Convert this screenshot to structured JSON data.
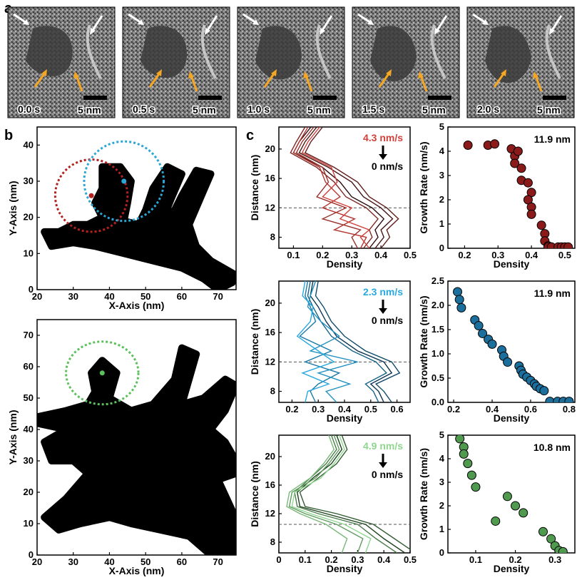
{
  "panel_labels": {
    "a": "a",
    "b": "b",
    "c": "c"
  },
  "panel_a": {
    "frames": [
      {
        "time": "0.0 s"
      },
      {
        "time": "0.5 s"
      },
      {
        "time": "1.0 s"
      },
      {
        "time": "1.5 s"
      },
      {
        "time": "2.0 s"
      }
    ],
    "scale_bar": "5 nm",
    "arrow_colors": {
      "white": "#ffffff",
      "orange": "#f5a623"
    }
  },
  "panel_b": {
    "plots": [
      {
        "xlabel": "X-Axis (nm)",
        "ylabel": "Y-Axis (nm)",
        "xlim": [
          20,
          75
        ],
        "ylim": [
          0,
          45
        ],
        "xticks": [
          "20",
          "30",
          "40",
          "50",
          "60",
          "70"
        ],
        "yticks": [
          "0",
          "10",
          "20",
          "30",
          "40"
        ],
        "circles": [
          {
            "color": "#b22222",
            "cx": 35,
            "cy": 26,
            "r": 10
          },
          {
            "color": "#2aa7d6",
            "cx": 44,
            "cy": 30,
            "r": 11
          }
        ]
      },
      {
        "xlabel": "X-Axis (nm)",
        "ylabel": "Y-Axis (nm)",
        "xlim": [
          20,
          75
        ],
        "ylim": [
          0,
          75
        ],
        "xticks": [
          "20",
          "30",
          "40",
          "50",
          "60",
          "70"
        ],
        "yticks": [
          "0",
          "10",
          "20",
          "30",
          "40",
          "50",
          "60",
          "70"
        ],
        "circles": [
          {
            "color": "#5cc15c",
            "cx": 38,
            "cy": 58,
            "r": 10
          }
        ]
      }
    ]
  },
  "chart_data": [
    {
      "type": "line",
      "id": "red-density",
      "xlabel": "Density",
      "ylabel": "Distance (nm)",
      "xlim": [
        0.05,
        0.5
      ],
      "ylim": [
        6.5,
        23
      ],
      "xticks": [
        "0.1",
        "0.2",
        "0.3",
        "0.4",
        "0.5"
      ],
      "yticks": [
        "8",
        "12",
        "16",
        "20"
      ],
      "annotation_top": "4.3 nm/s",
      "annotation_bottom": "0 nm/s",
      "reference_line_y": 12,
      "color_light": "#d0413a",
      "color_dark": "#2a0d0d",
      "series": [
        {
          "x": [
            0.16,
            0.12,
            0.1,
            0.2,
            0.26,
            0.3,
            0.37,
            0.41,
            0.38,
            0.39,
            0.36
          ],
          "y": [
            23,
            21,
            19.5,
            17.5,
            15.5,
            13.5,
            12,
            10.5,
            9,
            8,
            6.5
          ]
        },
        {
          "x": [
            0.18,
            0.14,
            0.12,
            0.22,
            0.3,
            0.34,
            0.4,
            0.44,
            0.4,
            0.41,
            0.38
          ],
          "y": [
            23,
            21,
            19.5,
            17.5,
            15.5,
            13.5,
            12,
            10.5,
            9,
            8,
            6.5
          ]
        },
        {
          "x": [
            0.2,
            0.16,
            0.14,
            0.24,
            0.32,
            0.36,
            0.42,
            0.46,
            0.42,
            0.43,
            0.4
          ],
          "y": [
            23,
            21,
            19.5,
            17.5,
            15.5,
            13.5,
            12,
            10.5,
            9,
            8,
            6.5
          ]
        },
        {
          "x": [
            0.14,
            0.11,
            0.09,
            0.18,
            0.24,
            0.28,
            0.35,
            0.39,
            0.36,
            0.37,
            0.34
          ],
          "y": [
            23,
            21,
            19.5,
            17.5,
            15.5,
            13.5,
            12,
            10.5,
            9,
            8,
            6.5
          ]
        },
        {
          "x": [
            0.17,
            0.13,
            0.11,
            0.2,
            0.22,
            0.18,
            0.28,
            0.2,
            0.33,
            0.3,
            0.32
          ],
          "y": [
            23,
            21,
            19.5,
            17.5,
            15.5,
            13.5,
            12,
            10.5,
            9,
            8,
            6.5
          ]
        },
        {
          "x": [
            0.15,
            0.12,
            0.1,
            0.19,
            0.21,
            0.26,
            0.2,
            0.31,
            0.24,
            0.35,
            0.33
          ],
          "y": [
            23,
            21,
            19.5,
            17.5,
            15.5,
            13.5,
            12,
            10.5,
            9,
            8,
            6.5
          ]
        },
        {
          "x": [
            0.19,
            0.15,
            0.13,
            0.23,
            0.25,
            0.2,
            0.3,
            0.26,
            0.36,
            0.33,
            0.36
          ],
          "y": [
            23,
            21,
            19.5,
            17.5,
            15.5,
            13.5,
            12,
            10.5,
            9,
            8,
            6.5
          ]
        }
      ]
    },
    {
      "type": "scatter",
      "id": "red-growth",
      "xlabel": "Density",
      "ylabel": "Growth Rate (nm/s)",
      "xlim": [
        0.15,
        0.53
      ],
      "ylim": [
        0,
        5
      ],
      "xticks": [
        "0.2",
        "0.3",
        "0.4",
        "0.5"
      ],
      "yticks": [
        "0",
        "1",
        "2",
        "3",
        "4",
        "5"
      ],
      "annotation": "11.9 nm",
      "color": "#8b1a1a",
      "x": [
        0.21,
        0.27,
        0.29,
        0.34,
        0.35,
        0.36,
        0.35,
        0.37,
        0.37,
        0.39,
        0.4,
        0.39,
        0.4,
        0.4,
        0.43,
        0.44,
        0.44,
        0.45,
        0.45,
        0.46,
        0.48,
        0.49,
        0.5,
        0.51
      ],
      "y": [
        4.25,
        4.25,
        4.3,
        4.1,
        3.8,
        4.0,
        3.5,
        3.3,
        2.8,
        2.7,
        2.3,
        2.0,
        1.7,
        1.4,
        0.95,
        0.6,
        0.3,
        0.1,
        0.05,
        0.05,
        0.05,
        0.05,
        0.05,
        0.05
      ]
    },
    {
      "type": "line",
      "id": "blue-density",
      "xlabel": "Density",
      "ylabel": "Distance (nm)",
      "xlim": [
        0.15,
        0.65
      ],
      "ylim": [
        6.5,
        23
      ],
      "xticks": [
        "0.2",
        "0.3",
        "0.4",
        "0.5",
        "0.6"
      ],
      "yticks": [
        "8",
        "12",
        "16",
        "20"
      ],
      "annotation_top": "2.3 nm/s",
      "annotation_bottom": "0 nm/s",
      "reference_line_y": 12,
      "color_light": "#29a8df",
      "color_dark": "#0b3550",
      "series": [
        {
          "x": [
            0.28,
            0.27,
            0.3,
            0.33,
            0.37,
            0.45,
            0.55,
            0.58,
            0.5,
            0.53,
            0.55
          ],
          "y": [
            23,
            21,
            19.5,
            17.5,
            15.5,
            13.5,
            12,
            10.5,
            9,
            8,
            6.5
          ]
        },
        {
          "x": [
            0.3,
            0.29,
            0.32,
            0.35,
            0.4,
            0.48,
            0.58,
            0.61,
            0.52,
            0.55,
            0.58
          ],
          "y": [
            23,
            21,
            19.5,
            17.5,
            15.5,
            13.5,
            12,
            10.5,
            9,
            8,
            6.5
          ]
        },
        {
          "x": [
            0.27,
            0.26,
            0.28,
            0.31,
            0.35,
            0.43,
            0.52,
            0.56,
            0.48,
            0.51,
            0.53
          ],
          "y": [
            23,
            21,
            19.5,
            17.5,
            15.5,
            13.5,
            12,
            10.5,
            9,
            8,
            6.5
          ]
        },
        {
          "x": [
            0.26,
            0.25,
            0.27,
            0.29,
            0.23,
            0.35,
            0.25,
            0.38,
            0.3,
            0.27,
            0.29
          ],
          "y": [
            23,
            21,
            19.5,
            17.5,
            15.5,
            13.5,
            12,
            10.5,
            9,
            8,
            6.5
          ]
        },
        {
          "x": [
            0.29,
            0.27,
            0.26,
            0.31,
            0.38,
            0.27,
            0.45,
            0.3,
            0.42,
            0.33,
            0.37
          ],
          "y": [
            23,
            21,
            19.5,
            17.5,
            15.5,
            13.5,
            12,
            10.5,
            9,
            8,
            6.5
          ]
        },
        {
          "x": [
            0.25,
            0.24,
            0.28,
            0.27,
            0.22,
            0.3,
            0.36,
            0.24,
            0.34,
            0.26,
            0.25
          ],
          "y": [
            23,
            21,
            19.5,
            17.5,
            15.5,
            13.5,
            12,
            10.5,
            9,
            8,
            6.5
          ]
        }
      ]
    },
    {
      "type": "scatter",
      "id": "blue-growth",
      "xlabel": "Density",
      "ylabel": "Growth Rate (nm/s)",
      "xlim": [
        0.17,
        0.83
      ],
      "ylim": [
        0,
        2.5
      ],
      "xticks": [
        "0.2",
        "0.4",
        "0.6",
        "0.8"
      ],
      "yticks": [
        "0.0",
        "0.5",
        "1.0",
        "1.5",
        "2.0",
        "2.5"
      ],
      "annotation": "11.9 nm",
      "color": "#1b6f9c",
      "x": [
        0.22,
        0.23,
        0.24,
        0.31,
        0.33,
        0.35,
        0.38,
        0.4,
        0.45,
        0.46,
        0.48,
        0.54,
        0.55,
        0.56,
        0.58,
        0.6,
        0.62,
        0.63,
        0.65,
        0.67,
        0.7,
        0.74,
        0.77,
        0.8
      ],
      "y": [
        2.28,
        2.12,
        1.95,
        1.7,
        1.58,
        1.42,
        1.3,
        1.2,
        1.08,
        0.95,
        0.83,
        0.75,
        0.66,
        0.58,
        0.52,
        0.45,
        0.38,
        0.33,
        0.28,
        0.24,
        0.02,
        0.02,
        0.02,
        0.02
      ]
    },
    {
      "type": "line",
      "id": "green-density",
      "xlabel": "Density",
      "ylabel": "Distance (nm)",
      "xlim": [
        0.0,
        0.5
      ],
      "ylim": [
        6.5,
        23
      ],
      "xticks": [
        "0",
        "0.1",
        "0.2",
        "0.3",
        "0.4",
        "0.5"
      ],
      "yticks": [
        "8",
        "12",
        "16",
        "20"
      ],
      "annotation_top": "4.9 nm/s",
      "annotation_bottom": "0 nm/s",
      "reference_line_y": 10.5,
      "color_light": "#8fd68f",
      "color_dark": "#1d3f1d",
      "series": [
        {
          "x": [
            0.22,
            0.24,
            0.2,
            0.13,
            0.07,
            0.08,
            0.18,
            0.33,
            0.4,
            0.48
          ],
          "y": [
            23,
            21,
            19,
            17,
            15,
            13,
            12,
            10.5,
            8.5,
            6.5
          ]
        },
        {
          "x": [
            0.24,
            0.26,
            0.22,
            0.15,
            0.08,
            0.1,
            0.22,
            0.36,
            0.44,
            0.52
          ],
          "y": [
            23,
            21,
            19,
            17,
            15,
            13,
            12,
            10.5,
            8.5,
            6.5
          ]
        },
        {
          "x": [
            0.2,
            0.22,
            0.18,
            0.12,
            0.06,
            0.07,
            0.15,
            0.3,
            0.37,
            0.45
          ],
          "y": [
            23,
            21,
            19,
            17,
            15,
            13,
            12,
            10.5,
            8.5,
            6.5
          ]
        },
        {
          "x": [
            0.21,
            0.23,
            0.19,
            0.14,
            0.05,
            0.04,
            0.1,
            0.22,
            0.32,
            0.3
          ],
          "y": [
            23,
            21,
            19,
            17,
            15,
            13,
            12,
            10.5,
            8.5,
            6.5
          ]
        },
        {
          "x": [
            0.19,
            0.21,
            0.17,
            0.12,
            0.04,
            0.03,
            0.08,
            0.18,
            0.26,
            0.24
          ],
          "y": [
            23,
            21,
            19,
            17,
            15,
            13,
            12,
            10.5,
            8.5,
            6.5
          ]
        },
        {
          "x": [
            0.23,
            0.25,
            0.21,
            0.16,
            0.06,
            0.05,
            0.12,
            0.25,
            0.35,
            0.33
          ],
          "y": [
            23,
            21,
            19,
            17,
            15,
            13,
            12,
            10.5,
            8.5,
            6.5
          ]
        }
      ]
    },
    {
      "type": "scatter",
      "id": "green-growth",
      "xlabel": "Density",
      "ylabel": "Growth Rate (nm/s)",
      "xlim": [
        0.03,
        0.35
      ],
      "ylim": [
        0,
        5
      ],
      "xticks": [
        "0.1",
        "0.2",
        "0.3"
      ],
      "yticks": [
        "0",
        "1",
        "2",
        "3",
        "4",
        "5"
      ],
      "annotation": "10.8 nm",
      "color": "#4f9a4f",
      "x": [
        0.06,
        0.07,
        0.07,
        0.08,
        0.09,
        0.1,
        0.15,
        0.18,
        0.2,
        0.22,
        0.27,
        0.29,
        0.3,
        0.31,
        0.32
      ],
      "y": [
        4.85,
        4.5,
        4.2,
        3.8,
        3.3,
        2.8,
        1.35,
        2.4,
        2.0,
        1.7,
        0.9,
        0.6,
        0.3,
        0.1,
        0.05
      ]
    }
  ]
}
